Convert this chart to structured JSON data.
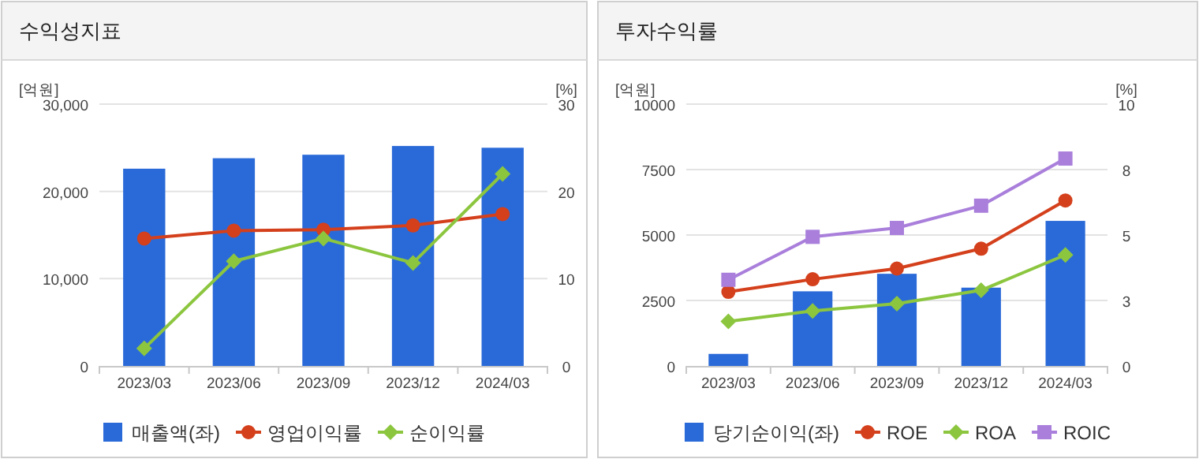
{
  "chart_data": [
    {
      "type": "bar",
      "title": "수익성지표",
      "ylabel": "[억원]",
      "y2label": "[%]",
      "categories": [
        "2023/03",
        "2023/06",
        "2023/09",
        "2023/12",
        "2024/03"
      ],
      "series": [
        {
          "name": "매출액(좌)",
          "color": "#2a6ad8",
          "values": [
            22600,
            23800,
            24200,
            25200,
            25000
          ]
        },
        {
          "name": "영업이익률",
          "type": "line",
          "axis": "y2",
          "marker": "circle",
          "color": "#d4401c",
          "values": [
            14.6,
            15.5,
            15.6,
            16.1,
            17.4
          ]
        },
        {
          "name": "순이익률",
          "type": "line",
          "axis": "y2",
          "marker": "diamond",
          "color": "#8cc63f",
          "values": [
            2.0,
            12.0,
            14.6,
            11.8,
            22.0
          ]
        }
      ],
      "ylim": [
        0,
        30000
      ],
      "yticks": [
        0,
        {
          "value": 10000,
          "label": "10,000"
        },
        {
          "value": 20000,
          "label": "20,000"
        },
        {
          "value": 30000,
          "label": "30,000"
        }
      ],
      "y2lim": [
        0,
        30
      ],
      "y2ticks": [
        0,
        10,
        20,
        30
      ],
      "grid": "y",
      "legend": "bottom"
    },
    {
      "type": "bar",
      "title": "투자수익률",
      "ylabel": "[억원]",
      "y2label": "[%]",
      "categories": [
        "2023/03",
        "2023/06",
        "2023/09",
        "2023/12",
        "2024/03"
      ],
      "series": [
        {
          "name": "당기순이익(좌)",
          "color": "#2a6ad8",
          "values": [
            460,
            2850,
            3520,
            2990,
            5540
          ]
        },
        {
          "name": "ROE",
          "type": "line",
          "axis": "y2",
          "marker": "circle",
          "color": "#d4401c",
          "values": [
            2.83,
            3.31,
            3.72,
            4.48,
            6.32
          ]
        },
        {
          "name": "ROA",
          "type": "line",
          "axis": "y2",
          "marker": "diamond",
          "color": "#8cc63f",
          "values": [
            1.7,
            2.1,
            2.38,
            2.89,
            4.24
          ]
        },
        {
          "name": "ROIC",
          "type": "line",
          "axis": "y2",
          "marker": "square",
          "color": "#a97fdb",
          "values": [
            3.29,
            4.93,
            5.27,
            6.12,
            7.92
          ]
        }
      ],
      "ylim": [
        0,
        10000
      ],
      "yticks": [
        0,
        2500,
        5000,
        7500,
        10000
      ],
      "y2lim": [
        0,
        10
      ],
      "y2ticks": [
        0,
        {
          "value": 2.5,
          "label": "3"
        },
        {
          "value": 5,
          "label": "5"
        },
        {
          "value": 7.5,
          "label": "8"
        },
        10
      ],
      "grid": "y",
      "legend": "bottom"
    }
  ]
}
